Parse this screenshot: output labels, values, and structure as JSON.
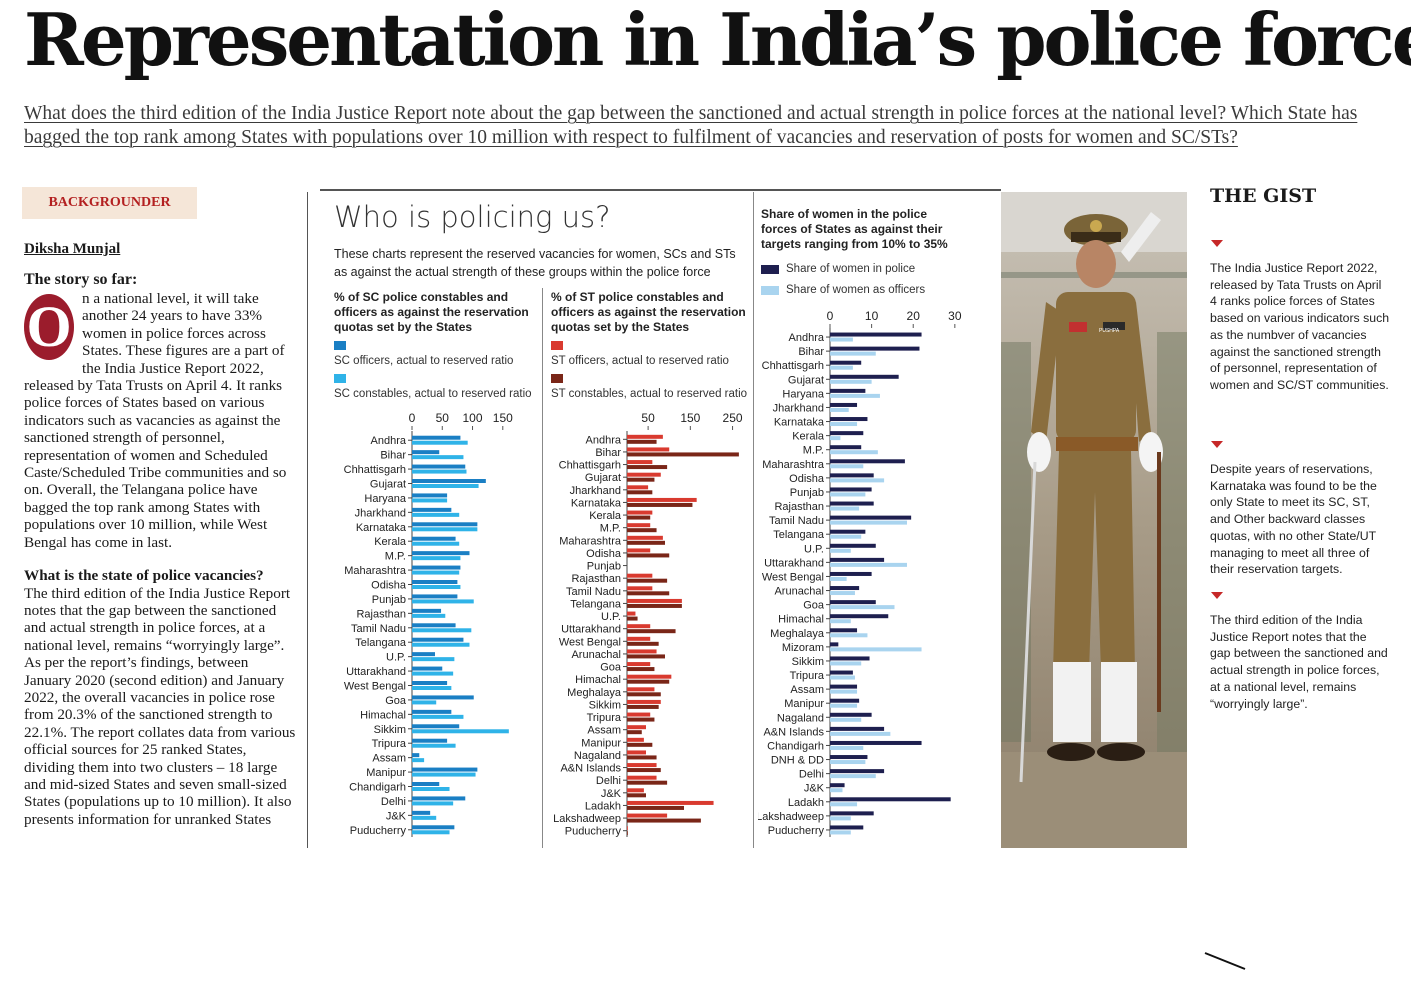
{
  "headline": "Representation in India’s police forces",
  "deck": "What does the third edition of the India Justice Report note about the gap between the sanctioned and actual strength in police forces at the national level? Which State has bagged the top rank among States with populations over 10 million with respect to fulfilment of vacancies and reservation of posts for women and SC/STs?",
  "section_tag": "BACKGROUNDER",
  "byline": "Diksha Munjal",
  "story": {
    "heading": "The story so far:",
    "dropcap": "O",
    "para1": "n a national level, it will take another 24 years to have 33% women in police forces across States. These figures are a part of the India Justice Report 2022, released by Tata Trusts on April 4. It ranks police forces of States based on various indicators such as vacancies as against the sanctioned strength of personnel, representation of women and Scheduled Caste/Scheduled Tribe communities and so on. Overall, the Telangana police have bagged the top rank among States with populations over 10 million, while West Bengal has come in last.",
    "q1": "What is the state of police vacancies?",
    "para2": "The third edition of the India Justice Report notes that the gap between the sanctioned and actual strength in police forces, at a national level, remains “worryingly large”. As per the report’s findings, between January 2020 (second edition) and January 2022, the overall vacancies in police rose from 20.3% of the sanctioned strength to 22.1%. The report collates data from various official sources for 25 ranked States, dividing them into two clusters – 18 large and mid-sized States and seven small-sized States (populations up to 10 million). It also presents information for unranked States"
  },
  "infographic": {
    "title": "Who is policing us?",
    "description": "These charts represent the reserved vacancies for women, SCs and STs as against the actual strength of these groups within the police force"
  },
  "chart_data": [
    {
      "type": "bar",
      "orientation": "horizontal",
      "title": "% of SC police constables and officers as against the reservation quotas set by the States",
      "ticks": [
        0,
        50,
        100,
        150
      ],
      "xlim": [
        0,
        190
      ],
      "colors": [
        "#1a7fc4",
        "#2fb3e8"
      ],
      "categories": [
        "Andhra",
        "Bihar",
        "Chhattisgarh",
        "Gujarat",
        "Haryana",
        "Jharkhand",
        "Karnataka",
        "Kerala",
        "M.P.",
        "Maharashtra",
        "Odisha",
        "Punjab",
        "Rajasthan",
        "Tamil Nadu",
        "Telangana",
        "U.P.",
        "Uttarakhand",
        "West Bengal",
        "Goa",
        "Himachal",
        "Sikkim",
        "Tripura",
        "Assam",
        "Manipur",
        "Chandigarh",
        "Delhi",
        "J&K",
        "Puducherry"
      ],
      "series": [
        {
          "name": "SC officers, actual to reserved ratio",
          "values": [
            80,
            45,
            88,
            122,
            58,
            65,
            108,
            72,
            95,
            80,
            75,
            75,
            48,
            72,
            85,
            38,
            50,
            58,
            102,
            65,
            78,
            58,
            12,
            108,
            45,
            88,
            30,
            70
          ]
        },
        {
          "name": "SC constables, actual to reserved ratio",
          "values": [
            92,
            85,
            90,
            110,
            58,
            78,
            108,
            78,
            80,
            78,
            80,
            102,
            55,
            98,
            95,
            70,
            68,
            65,
            40,
            85,
            160,
            72,
            20,
            105,
            62,
            68,
            40,
            62
          ]
        }
      ]
    },
    {
      "type": "bar",
      "orientation": "horizontal",
      "title": "% of ST police constables and officers as against the reservation quotas set by the States",
      "ticks": [
        50,
        150,
        250
      ],
      "xlim": [
        0,
        270
      ],
      "colors": [
        "#d93a2f",
        "#7a2618"
      ],
      "categories": [
        "Andhra",
        "Bihar",
        "Chhattisgarh",
        "Gujarat",
        "Jharkhand",
        "Karnataka",
        "Kerala",
        "M.P.",
        "Maharashtra",
        "Odisha",
        "Punjab",
        "Rajasthan",
        "Tamil Nadu",
        "Telangana",
        "U.P.",
        "Uttarakhand",
        "West Bengal",
        "Arunachal",
        "Goa",
        "Himachal",
        "Meghalaya",
        "Sikkim",
        "Tripura",
        "Assam",
        "Manipur",
        "Nagaland",
        "A&N Islands",
        "Delhi",
        "J&K",
        "Ladakh",
        "Lakshadweep",
        "Puducherry"
      ],
      "series": [
        {
          "name": "ST officers, actual to reserved ratio",
          "values": [
            85,
            100,
            60,
            80,
            50,
            165,
            60,
            55,
            85,
            55,
            0,
            60,
            60,
            130,
            20,
            55,
            55,
            70,
            55,
            105,
            65,
            80,
            55,
            45,
            40,
            45,
            70,
            70,
            40,
            205,
            95,
            2
          ]
        },
        {
          "name": "ST constables, actual to reserved ratio",
          "values": [
            70,
            265,
            95,
            65,
            60,
            155,
            55,
            70,
            90,
            100,
            0,
            95,
            100,
            130,
            25,
            115,
            75,
            90,
            65,
            100,
            80,
            75,
            65,
            35,
            60,
            70,
            80,
            95,
            45,
            135,
            175,
            2
          ]
        }
      ]
    },
    {
      "type": "bar",
      "orientation": "horizontal",
      "title": "Share of women in the police forces of States as against their targets ranging from 10% to 35%",
      "ticks": [
        0,
        10,
        20,
        30
      ],
      "xlim": [
        0,
        31
      ],
      "colors": [
        "#1e1f4f",
        "#a9d4ef"
      ],
      "categories": [
        "Andhra",
        "Bihar",
        "Chhattisgarh",
        "Gujarat",
        "Haryana",
        "Jharkhand",
        "Karnataka",
        "Kerala",
        "M.P.",
        "Maharashtra",
        "Odisha",
        "Punjab",
        "Rajasthan",
        "Tamil Nadu",
        "Telangana",
        "U.P.",
        "Uttarakhand",
        "West Bengal",
        "Arunachal",
        "Goa",
        "Himachal",
        "Meghalaya",
        "Mizoram",
        "Sikkim",
        "Tripura",
        "Assam",
        "Manipur",
        "Nagaland",
        "A&N Islands",
        "Chandigarh",
        "DNH & DD",
        "Delhi",
        "J&K",
        "Ladakh",
        "Lakshadweep",
        "Puducherry"
      ],
      "series": [
        {
          "name": "Share of women in police",
          "values": [
            22,
            21.5,
            7.5,
            16.5,
            8.5,
            6.5,
            9,
            8,
            7.5,
            18,
            10.5,
            10,
            10.5,
            19.5,
            8.5,
            11,
            13,
            10,
            7,
            11,
            14,
            6.5,
            2,
            9.5,
            5.5,
            6.5,
            7,
            10,
            13,
            22,
            9,
            13,
            3.5,
            29,
            10.5,
            8
          ]
        },
        {
          "name": "Share of women as officers",
          "values": [
            5.5,
            11,
            5.5,
            10,
            12,
            4.5,
            6.5,
            2.5,
            11.5,
            8,
            13,
            8.5,
            7,
            18.5,
            7.5,
            5,
            18.5,
            4,
            6,
            15.5,
            5,
            9,
            22,
            7.5,
            6,
            6.5,
            6.5,
            7.5,
            14.5,
            8,
            8.5,
            11,
            3,
            6.5,
            5,
            5
          ]
        }
      ]
    }
  ],
  "gist": {
    "title": "THE GIST",
    "items": [
      "The India Justice Report 2022, released by Tata Trusts on April 4 ranks police forces of States based on various indicators such as the numbver of vacancies against the sanctioned strength of personnel, representation of women and SC/ST communities.",
      "Despite years of reservations, Karnataka was found to be the only State to meet its SC, ST, and Other backward classes quotas, with no other State/UT managing to meet all three of their reservation targets.",
      "The third edition of the India Justice Report notes that the gap between the sanctioned and actual strength in police forces, at a national level, remains “worryingly large”."
    ]
  },
  "photo": {
    "badge_text": "PUSHPA"
  }
}
